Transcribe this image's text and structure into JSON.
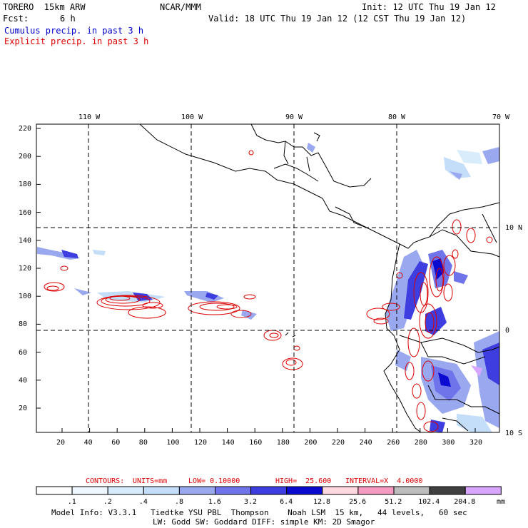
{
  "header": {
    "model": "TORERO  15km ARW",
    "org": "NCAR/MMM",
    "init": "Init: 12 UTC Thu 19 Jan 12",
    "fcst_label": "Fcst:",
    "fcst_value": "6 h",
    "valid": "Valid: 18 UTC Thu 19 Jan 12 (12 CST Thu 19 Jan 12)",
    "line_cumulus": "Cumulus precip. in past 3 h",
    "line_explicit": "Explicit precip. in past 3 h"
  },
  "map": {
    "lon_labels": [
      "110 W",
      "100 W",
      "90 W",
      "80 W",
      "70 W"
    ],
    "lat_labels": [
      "10 N",
      "0",
      "10 S"
    ],
    "x_ticks": [
      "20",
      "40",
      "60",
      "80",
      "100",
      "120",
      "140",
      "160",
      "180",
      "200",
      "220",
      "240",
      "260",
      "280",
      "300",
      "320"
    ],
    "y_ticks": [
      "220",
      "200",
      "180",
      "160",
      "140",
      "120",
      "100",
      "80",
      "60",
      "40",
      "20"
    ]
  },
  "contour_info": {
    "label": "CONTOURS:",
    "units": "UNITS=mm",
    "low": "LOW= 0.10000",
    "high": "HIGH=  25.600",
    "interval": "INTERVAL=X  4.0000"
  },
  "colorbar": {
    "labels": [
      ".1",
      ".2",
      ".4",
      ".8",
      "1.6",
      "3.2",
      "6.4",
      "12.8",
      "25.6",
      "51.2",
      "102.4",
      "204.8"
    ],
    "unit": "mm",
    "colors": [
      "#ffffff",
      "#eef7ff",
      "#d8ecfb",
      "#c4defa",
      "#9aa8f0",
      "#6f74ea",
      "#3d3de0",
      "#0a0ad0",
      "#ffd8e0",
      "#f59ac0",
      "#bdbdbd",
      "#404040",
      "#d9a6ff"
    ]
  },
  "footer": {
    "line1": "Model Info: V3.3.1   Tiedtke YSU PBL  Thompson    Noah LSM  15 km,   44 levels,   60 sec",
    "line2": "LW: Godd SW: Goddard DIFF: simple KM: 2D Smagor"
  }
}
